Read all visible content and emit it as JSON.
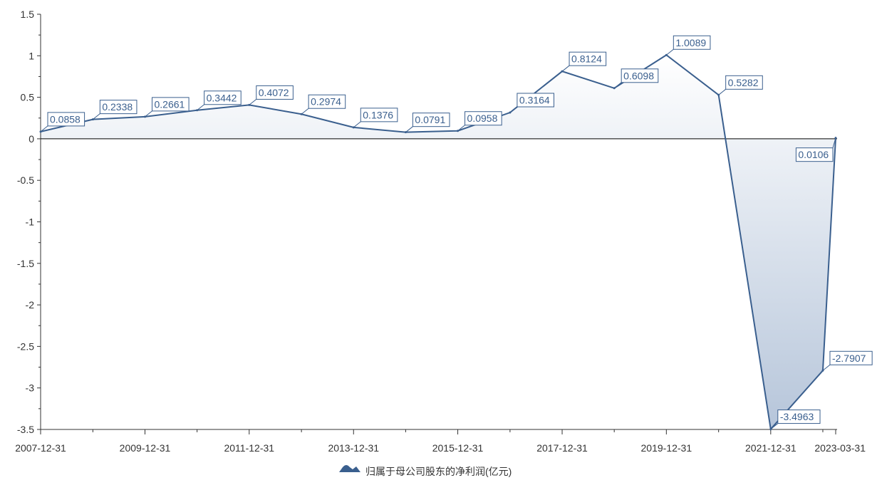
{
  "chart_data": {
    "type": "area",
    "x": [
      "2007-12-31",
      "2008-12-31",
      "2009-12-31",
      "2010-12-31",
      "2011-12-31",
      "2012-12-31",
      "2013-12-31",
      "2014-12-31",
      "2015-12-31",
      "2016-12-31",
      "2017-12-31",
      "2018-12-31",
      "2019-12-31",
      "2020-12-31",
      "2021-12-31",
      "2022-12-31",
      "2023-03-31"
    ],
    "x_tick_labels": [
      "2007-12-31",
      "2009-12-31",
      "2011-12-31",
      "2013-12-31",
      "2015-12-31",
      "2017-12-31",
      "2019-12-31",
      "2021-12-31",
      "2023-03-31"
    ],
    "y_tick_labels": [
      "1.5",
      "1",
      "0.5",
      "0",
      "-0.5",
      "-1",
      "-1.5",
      "-2",
      "-2.5",
      "-3",
      "-3.5"
    ],
    "ylim": [
      -3.5,
      1.5
    ],
    "series": [
      {
        "name": "归属于母公司股东的净利润(亿元)",
        "values": [
          0.0858,
          0.2338,
          0.2661,
          0.3442,
          0.4072,
          0.2974,
          0.1376,
          0.0791,
          0.0958,
          0.3164,
          0.8124,
          0.6098,
          1.0089,
          0.5282,
          -3.4963,
          -2.7907,
          0.0106
        ],
        "labels": [
          "0.0858",
          "0.2338",
          "0.2661",
          "0.3442",
          "0.4072",
          "0.2974",
          "0.1376",
          "0.0791",
          "0.0958",
          "0.3164",
          "0.8124",
          "0.6098",
          "1.0089",
          "0.5282",
          "-3.4963",
          "-2.7907",
          "0.0106"
        ]
      }
    ],
    "legend_position": "bottom-center",
    "grid": false,
    "colors": {
      "line": "#3a5f8e",
      "fill_top": "#e6ebf3",
      "fill_bottom": "#aebfd6",
      "axis": "#333333",
      "label_border": "#3a5f8e"
    }
  }
}
